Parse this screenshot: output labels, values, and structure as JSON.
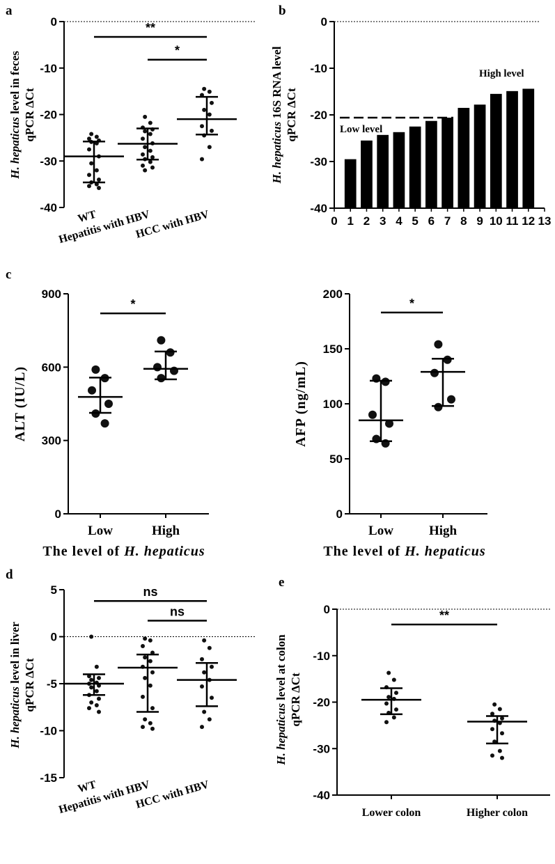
{
  "chart_data": [
    {
      "panel": "a",
      "type": "scatter",
      "categories": [
        "WT",
        "Hepatitis with HBV",
        "HCC with HBV"
      ],
      "ylabel_italic": "H. hepaticus",
      "ylabel_rest": " level in feces",
      "ylabel_line2": "qPCR ΔCt",
      "ylim": [
        -40,
        0
      ],
      "yticks": [
        0,
        -10,
        -20,
        -30,
        -40
      ],
      "reference_line": 0,
      "series": [
        {
          "values": [
            -24.2,
            -24.8,
            -25.2,
            -25.6,
            -25.9,
            -26.2,
            -27.5,
            -29.0,
            -30.5,
            -32.0,
            -33.0,
            -34.0,
            -34.6,
            -35.0,
            -35.4,
            -35.8
          ]
        },
        {
          "values": [
            -20.5,
            -21.8,
            -22.8,
            -23.2,
            -23.6,
            -24.2,
            -25.2,
            -26.2,
            -27.0,
            -27.8,
            -28.6,
            -29.2,
            -29.6,
            -30.2,
            -31.0,
            -31.4,
            -32.0
          ]
        },
        {
          "values": [
            -14.5,
            -15.1,
            -15.8,
            -17.5,
            -19.0,
            -20.0,
            -22.5,
            -23.5,
            -24.5,
            -27.0,
            -29.6
          ]
        }
      ],
      "summary": [
        {
          "mean": -29.0,
          "upper": -25.8,
          "lower": -34.6
        },
        {
          "mean": -26.3,
          "upper": -23.0,
          "lower": -29.7
        },
        {
          "mean": -21.0,
          "upper": -16.2,
          "lower": -24.3
        }
      ],
      "brackets": [
        {
          "from": 0,
          "to": 2,
          "y": -3.3,
          "label": "**"
        },
        {
          "from": 1,
          "to": 2,
          "y": -8.2,
          "label": "*"
        }
      ]
    },
    {
      "panel": "b",
      "type": "bar",
      "ylabel_italic": "H. hepaticus",
      "ylabel_rest": " 16S RNA  level",
      "ylabel_line2": "qPCR ΔCt",
      "x": [
        1,
        2,
        3,
        4,
        5,
        6,
        7,
        8,
        9,
        10,
        11,
        12
      ],
      "values": [
        -29.5,
        -25.5,
        -24.3,
        -23.7,
        -22.5,
        -21.3,
        -20.6,
        -18.5,
        -17.8,
        -15.5,
        -14.9,
        -14.4
      ],
      "xlim": [
        0,
        13
      ],
      "xticks": [
        0,
        1,
        2,
        3,
        4,
        5,
        6,
        7,
        8,
        9,
        10,
        11,
        12,
        13
      ],
      "ylim": [
        -40,
        0
      ],
      "yticks": [
        0,
        -10,
        -20,
        -30,
        -40
      ],
      "reference_line": 0,
      "threshold_line": -20.6,
      "annotations": [
        "Low level",
        "High level"
      ]
    },
    {
      "panel": "c",
      "type": "scatter",
      "categories": [
        "Low",
        "High"
      ],
      "ylabel": "ALT  (IU/L)",
      "xlabel_prefix": "The level of ",
      "xlabel_italic": "H. hepaticus",
      "ylim": [
        0,
        900
      ],
      "yticks": [
        0,
        300,
        600,
        900
      ],
      "series": [
        {
          "values": [
            590,
            555,
            505,
            450,
            410,
            370
          ]
        },
        {
          "values": [
            710,
            660,
            600,
            585,
            555
          ]
        }
      ],
      "summary": [
        {
          "mean": 478,
          "upper": 557,
          "lower": 413
        },
        {
          "mean": 593,
          "upper": 664,
          "lower": 550
        }
      ],
      "brackets": [
        {
          "from": 0,
          "to": 1,
          "y": 820,
          "label": "*"
        }
      ]
    },
    {
      "panel": "c-right",
      "type": "scatter",
      "categories": [
        "Low",
        "High"
      ],
      "ylabel": "AFP  (ng/mL)",
      "xlabel_prefix": "The level of ",
      "xlabel_italic": "H. hepaticus",
      "ylim": [
        0,
        200
      ],
      "yticks": [
        0,
        50,
        100,
        150,
        200
      ],
      "series": [
        {
          "values": [
            123,
            120,
            90,
            82,
            68,
            64
          ]
        },
        {
          "values": [
            154,
            140,
            128,
            104,
            97
          ]
        }
      ],
      "summary": [
        {
          "mean": 85,
          "upper": 121,
          "lower": 66
        },
        {
          "mean": 129,
          "upper": 141,
          "lower": 98
        }
      ],
      "brackets": [
        {
          "from": 0,
          "to": 1,
          "y": 183,
          "label": "*"
        }
      ]
    },
    {
      "panel": "d",
      "type": "scatter",
      "categories": [
        "WT",
        "Hepatitis with HBV",
        "HCC with HBV"
      ],
      "ylabel_italic": "H. hepaticus",
      "ylabel_rest": " level in liver",
      "ylabel_line2": "qPCR ΔCt",
      "ylim": [
        -15,
        5
      ],
      "yticks": [
        5,
        0,
        -5,
        -10,
        -15
      ],
      "reference_line": 0,
      "series": [
        {
          "values": [
            0.0,
            -3.2,
            -4.2,
            -4.4,
            -4.6,
            -4.9,
            -5.0,
            -5.2,
            -5.4,
            -5.8,
            -6.2,
            -6.6,
            -7.0,
            -7.3,
            -7.6,
            -8.0
          ]
        },
        {
          "values": [
            -0.2,
            -0.4,
            -1.0,
            -1.7,
            -2.2,
            -2.6,
            -3.2,
            -3.8,
            -4.4,
            -5.2,
            -6.4,
            -7.6,
            -8.8,
            -9.2,
            -9.6,
            -9.8
          ]
        },
        {
          "values": [
            -0.4,
            -1.2,
            -2.4,
            -3.2,
            -3.8,
            -4.6,
            -5.3,
            -6.5,
            -8.0,
            -8.8,
            -9.6
          ]
        }
      ],
      "summary": [
        {
          "mean": -5.0,
          "upper": -4.0,
          "lower": -6.2
        },
        {
          "mean": -3.3,
          "upper": -1.9,
          "lower": -8.0
        },
        {
          "mean": -4.6,
          "upper": -2.8,
          "lower": -7.4
        }
      ],
      "brackets": [
        {
          "from": 0,
          "to": 2,
          "y": 3.8,
          "label": "ns"
        },
        {
          "from": 1,
          "to": 2,
          "y": 1.7,
          "label": "ns"
        }
      ]
    },
    {
      "panel": "e",
      "type": "scatter",
      "categories": [
        "Lower colon",
        "Higher colon"
      ],
      "ylabel_italic": "H. hepaticus",
      "ylabel_rest": " level at colon",
      "ylabel_line2": "qPCR ΔCt",
      "ylim": [
        -40,
        0
      ],
      "yticks": [
        0,
        -10,
        -20,
        -30,
        -40
      ],
      "reference_line": 0,
      "series": [
        {
          "values": [
            -13.7,
            -15.2,
            -16.8,
            -18.0,
            -18.9,
            -19.3,
            -20.3,
            -21.6,
            -22.3,
            -23.3,
            -24.3
          ]
        },
        {
          "values": [
            -20.5,
            -21.5,
            -22.5,
            -23.5,
            -24.0,
            -24.5,
            -25.8,
            -26.7,
            -28.5,
            -30.5,
            -31.5,
            -32.0
          ]
        }
      ],
      "summary": [
        {
          "mean": -19.5,
          "upper": -17.0,
          "lower": -22.6
        },
        {
          "mean": -24.2,
          "upper": -23.0,
          "lower": -28.9
        }
      ],
      "brackets": [
        {
          "from": 0,
          "to": 1,
          "y": -3.3,
          "label": "**"
        }
      ]
    }
  ]
}
